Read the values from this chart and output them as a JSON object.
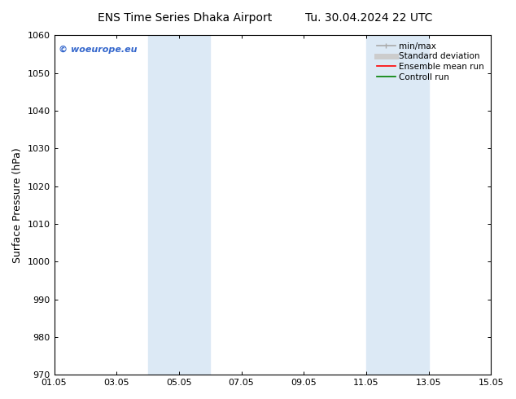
{
  "title_left": "ENS Time Series Dhaka Airport",
  "title_right": "Tu. 30.04.2024 22 UTC",
  "ylabel": "Surface Pressure (hPa)",
  "xlabel": "",
  "ylim": [
    970,
    1060
  ],
  "yticks": [
    970,
    980,
    990,
    1000,
    1010,
    1020,
    1030,
    1040,
    1050,
    1060
  ],
  "xlim_start": 0.0,
  "xlim_end": 14.0,
  "xtick_positions": [
    0,
    2,
    4,
    6,
    8,
    10,
    12,
    14
  ],
  "xtick_labels": [
    "01.05",
    "03.05",
    "05.05",
    "07.05",
    "09.05",
    "11.05",
    "13.05",
    "15.05"
  ],
  "shaded_regions": [
    {
      "xmin": 3.0,
      "xmax": 5.0,
      "color": "#dce9f5"
    },
    {
      "xmin": 10.0,
      "xmax": 12.0,
      "color": "#dce9f5"
    }
  ],
  "watermark_text": "© woeurope.eu",
  "watermark_color": "#3366cc",
  "legend_items": [
    {
      "label": "min/max",
      "color": "#aaaaaa",
      "lw": 1.2,
      "style": "line_with_caps"
    },
    {
      "label": "Standard deviation",
      "color": "#cccccc",
      "lw": 5,
      "style": "solid"
    },
    {
      "label": "Ensemble mean run",
      "color": "red",
      "lw": 1.2,
      "style": "solid"
    },
    {
      "label": "Controll run",
      "color": "green",
      "lw": 1.2,
      "style": "solid"
    }
  ],
  "bg_color": "#ffffff",
  "title_fontsize": 10,
  "axis_label_fontsize": 9,
  "tick_fontsize": 8,
  "legend_fontsize": 7.5
}
